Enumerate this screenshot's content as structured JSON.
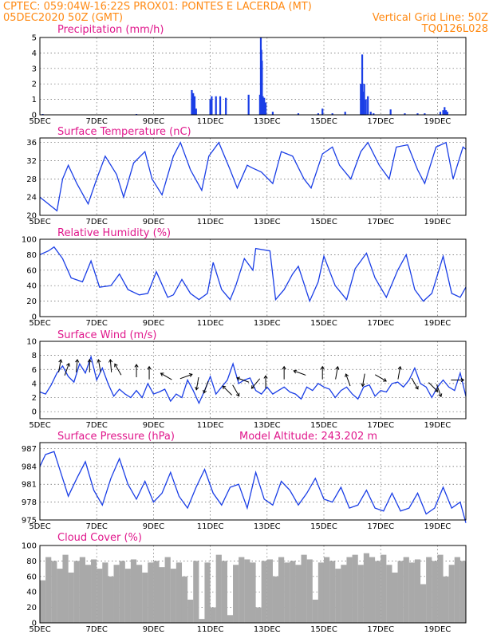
{
  "header": {
    "line1": "CPTEC:   059:04W-16:22S   PROX01: PONTES E LACERDA (MT)",
    "line2_left": "05DEC2020 50Z (GMT)",
    "line2_right": "Vertical Grid Line: 50Z",
    "line3_right": "TQ0126L028"
  },
  "colors": {
    "header": "#ff8a14",
    "titles": "#e0188c",
    "series": "#1a3ee6",
    "cloud": "#a9a9a9",
    "arrows": "#000000"
  },
  "chart_data": [
    {
      "type": "bar",
      "title": "Precipitation (mm/h)",
      "x_ticks": [
        "5DEC",
        "7DEC",
        "9DEC",
        "11DEC",
        "13DEC",
        "15DEC",
        "17DEC",
        "19DEC"
      ],
      "ylim": [
        0,
        5
      ],
      "y_ticks": [
        "0",
        "1",
        "2",
        "3",
        "4",
        "5"
      ],
      "grid": true,
      "x_days": [
        5.1,
        8.4,
        10.35,
        10.4,
        10.45,
        10.5,
        11.0,
        11.05,
        11.2,
        11.35,
        11.55,
        12.35,
        12.75,
        12.78,
        12.8,
        12.82,
        12.85,
        12.9,
        12.95,
        13.2,
        14.1,
        14.8,
        14.95,
        15.3,
        15.75,
        16.3,
        16.35,
        16.38,
        16.42,
        16.48,
        16.55,
        16.65,
        16.75,
        17.35,
        17.85,
        18.3,
        18.55,
        19.1,
        19.2,
        19.25,
        19.3,
        19.35
      ],
      "values": [
        0.05,
        0.05,
        1.6,
        1.4,
        1.2,
        0.4,
        1.0,
        1.2,
        1.2,
        1.2,
        1.1,
        1.3,
        1.3,
        5.0,
        4.2,
        3.5,
        1.2,
        1.1,
        0.8,
        0.2,
        0.1,
        0.1,
        0.4,
        0.1,
        0.2,
        2.0,
        3.9,
        1.5,
        2.0,
        1.0,
        1.2,
        0.2,
        0.1,
        0.35,
        0.1,
        0.1,
        0.1,
        0.2,
        0.3,
        0.5,
        0.3,
        0.2
      ]
    },
    {
      "type": "line",
      "title": "Surface Temperature (nC)",
      "x_ticks": [
        "5DEC",
        "7DEC",
        "9DEC",
        "11DEC",
        "13DEC",
        "15DEC",
        "17DEC",
        "19DEC"
      ],
      "ylim": [
        20,
        37
      ],
      "y_ticks": [
        "20",
        "24",
        "28",
        "32",
        "36"
      ],
      "grid": true,
      "x_days": [
        5.0,
        5.3,
        5.6,
        5.8,
        6.0,
        6.3,
        6.7,
        7.0,
        7.3,
        7.7,
        7.95,
        8.3,
        8.7,
        8.95,
        9.3,
        9.7,
        9.95,
        10.3,
        10.7,
        10.95,
        11.3,
        11.7,
        11.95,
        12.3,
        12.45,
        12.8,
        13.2,
        13.5,
        13.9,
        14.3,
        14.55,
        14.95,
        15.3,
        15.55,
        15.95,
        16.3,
        16.55,
        16.95,
        17.3,
        17.55,
        17.95,
        18.3,
        18.55,
        18.95,
        19.3,
        19.55,
        19.9,
        20.0
      ],
      "values": [
        24,
        22.5,
        21,
        28,
        31,
        27,
        22.5,
        28,
        33,
        29,
        24,
        31.5,
        34,
        28,
        24.5,
        33,
        36,
        30,
        25.5,
        33,
        36,
        30,
        26,
        31,
        30.5,
        29.5,
        27,
        34,
        33,
        28,
        26,
        33.5,
        35,
        31,
        28,
        34,
        36,
        31,
        28,
        35,
        35.5,
        30,
        27,
        35,
        36,
        28,
        35,
        34.5
      ]
    },
    {
      "type": "line",
      "title": "Relative Humidity (%)",
      "x_ticks": [
        "5DEC",
        "7DEC",
        "9DEC",
        "11DEC",
        "13DEC",
        "15DEC",
        "17DEC",
        "19DEC"
      ],
      "ylim": [
        0,
        100
      ],
      "y_ticks": [
        "0",
        "20",
        "40",
        "60",
        "80",
        "100"
      ],
      "grid": true,
      "x_days": [
        5.0,
        5.3,
        5.5,
        5.8,
        6.1,
        6.5,
        6.8,
        7.1,
        7.5,
        7.8,
        8.1,
        8.5,
        8.8,
        9.1,
        9.5,
        9.7,
        10.0,
        10.3,
        10.6,
        10.9,
        11.1,
        11.4,
        11.7,
        11.9,
        12.2,
        12.5,
        12.6,
        13.1,
        13.3,
        13.6,
        13.9,
        14.1,
        14.5,
        14.8,
        15.0,
        15.4,
        15.8,
        16.1,
        16.5,
        16.8,
        17.2,
        17.6,
        17.9,
        18.2,
        18.5,
        18.8,
        19.2,
        19.5,
        19.8,
        20.0
      ],
      "values": [
        80,
        85,
        90,
        75,
        50,
        45,
        72,
        38,
        40,
        55,
        35,
        28,
        30,
        58,
        25,
        28,
        48,
        30,
        22,
        30,
        70,
        35,
        22,
        40,
        75,
        60,
        88,
        85,
        22,
        35,
        55,
        65,
        20,
        45,
        78,
        40,
        22,
        62,
        82,
        50,
        25,
        60,
        80,
        35,
        20,
        30,
        78,
        30,
        25,
        38
      ]
    },
    {
      "type": "line",
      "title": "Surface Wind (m/s)",
      "x_ticks": [
        "5DEC",
        "7DEC",
        "9DEC",
        "11DEC",
        "13DEC",
        "15DEC",
        "17DEC",
        "19DEC"
      ],
      "ylim": [
        -1,
        10
      ],
      "y_ticks": [
        "0",
        "2",
        "4",
        "6",
        "8",
        "10"
      ],
      "grid": true,
      "x_days": [
        5.0,
        5.2,
        5.4,
        5.6,
        5.8,
        6.0,
        6.2,
        6.4,
        6.6,
        6.8,
        7.0,
        7.2,
        7.4,
        7.6,
        7.8,
        8.0,
        8.2,
        8.4,
        8.6,
        8.8,
        9.0,
        9.2,
        9.4,
        9.6,
        9.8,
        10.0,
        10.2,
        10.4,
        10.6,
        10.8,
        11.0,
        11.2,
        11.4,
        11.6,
        11.8,
        12.0,
        12.2,
        12.4,
        12.6,
        12.8,
        13.0,
        13.2,
        13.4,
        13.6,
        13.8,
        14.0,
        14.2,
        14.4,
        14.6,
        14.8,
        15.0,
        15.2,
        15.4,
        15.6,
        15.8,
        16.0,
        16.2,
        16.4,
        16.6,
        16.8,
        17.0,
        17.2,
        17.4,
        17.6,
        17.8,
        18.0,
        18.2,
        18.4,
        18.6,
        18.8,
        19.0,
        19.2,
        19.4,
        19.6,
        19.8,
        20.0
      ],
      "values": [
        2.8,
        2.5,
        3.8,
        5.5,
        6.5,
        5,
        4.2,
        6.8,
        5.5,
        7.8,
        4.5,
        6.2,
        4,
        2.2,
        3.2,
        2.5,
        2,
        3,
        2,
        4,
        2.5,
        2.8,
        3.2,
        1.5,
        2.5,
        2,
        4.5,
        3,
        1.2,
        3,
        5,
        2.5,
        3.5,
        4.5,
        6.8,
        4,
        4.5,
        4.8,
        3,
        2.5,
        3.5,
        2.5,
        3,
        3.5,
        2.8,
        2.5,
        1.8,
        3.5,
        3,
        4,
        3.5,
        3.2,
        2,
        3,
        3.5,
        2.5,
        1.8,
        3.5,
        3.8,
        2.2,
        3,
        2.8,
        4,
        4.2,
        3.5,
        4.5,
        6.2,
        4,
        3.5,
        2,
        3.5,
        4.5,
        3.5,
        3,
        5.5,
        2.2
      ],
      "wind_arrows": [
        {
          "day": 5.7,
          "speed": 6.5,
          "dir_deg": 80
        },
        {
          "day": 5.95,
          "speed": 6.0,
          "dir_deg": 70
        },
        {
          "day": 6.3,
          "speed": 6.5,
          "dir_deg": 85
        },
        {
          "day": 6.75,
          "speed": 6.5,
          "dir_deg": 90
        },
        {
          "day": 7.1,
          "speed": 6.5,
          "dir_deg": 100
        },
        {
          "day": 7.5,
          "speed": 6.5,
          "dir_deg": 95
        },
        {
          "day": 7.75,
          "speed": 6.0,
          "dir_deg": 120
        },
        {
          "day": 8.4,
          "speed": 5.8,
          "dir_deg": 90
        },
        {
          "day": 8.85,
          "speed": 5.5,
          "dir_deg": 90
        },
        {
          "day": 9.45,
          "speed": 5.0,
          "dir_deg": 150
        },
        {
          "day": 10.15,
          "speed": 5.0,
          "dir_deg": 20
        },
        {
          "day": 10.55,
          "speed": 4.0,
          "dir_deg": -100
        },
        {
          "day": 10.85,
          "speed": 3.5,
          "dir_deg": -110
        },
        {
          "day": 11.6,
          "speed": 3.0,
          "dir_deg": 135
        },
        {
          "day": 11.9,
          "speed": 3.0,
          "dir_deg": -60
        },
        {
          "day": 12.15,
          "speed": 4.5,
          "dir_deg": 160
        },
        {
          "day": 12.6,
          "speed": 4.0,
          "dir_deg": -130
        },
        {
          "day": 12.95,
          "speed": 4.2,
          "dir_deg": 90
        },
        {
          "day": 13.6,
          "speed": 5.5,
          "dir_deg": 90
        },
        {
          "day": 14.15,
          "speed": 5.5,
          "dir_deg": 160
        },
        {
          "day": 14.95,
          "speed": 5.5,
          "dir_deg": 90
        },
        {
          "day": 15.45,
          "speed": 5.5,
          "dir_deg": 80
        },
        {
          "day": 15.85,
          "speed": 4.5,
          "dir_deg": 110
        },
        {
          "day": 16.4,
          "speed": 4.5,
          "dir_deg": -100
        },
        {
          "day": 17.0,
          "speed": 4.8,
          "dir_deg": -30
        },
        {
          "day": 17.65,
          "speed": 5.5,
          "dir_deg": 80
        },
        {
          "day": 18.2,
          "speed": 4.0,
          "dir_deg": -60
        },
        {
          "day": 18.85,
          "speed": 3.5,
          "dir_deg": -45
        },
        {
          "day": 19.05,
          "speed": 3.0,
          "dir_deg": -70
        },
        {
          "day": 19.7,
          "speed": 4.5,
          "dir_deg": 0
        }
      ]
    },
    {
      "type": "line",
      "title": "Surface Pressure (hPa)",
      "annotation": "Model Altitude: 243.202 m",
      "x_ticks": [
        "5DEC",
        "7DEC",
        "9DEC",
        "11DEC",
        "13DEC",
        "15DEC",
        "17DEC",
        "19DEC"
      ],
      "ylim": [
        975,
        988
      ],
      "y_ticks": [
        "975",
        "978",
        "981",
        "984",
        "987"
      ],
      "grid": true,
      "x_days": [
        5.0,
        5.2,
        5.5,
        5.8,
        6.0,
        6.3,
        6.6,
        6.9,
        7.2,
        7.5,
        7.8,
        8.1,
        8.4,
        8.7,
        9.0,
        9.3,
        9.6,
        9.9,
        10.2,
        10.5,
        10.8,
        11.1,
        11.4,
        11.7,
        12.0,
        12.3,
        12.6,
        12.9,
        13.2,
        13.5,
        13.8,
        14.1,
        14.4,
        14.7,
        15.0,
        15.3,
        15.6,
        15.9,
        16.2,
        16.5,
        16.8,
        17.1,
        17.4,
        17.7,
        18.0,
        18.3,
        18.6,
        18.9,
        19.2,
        19.5,
        19.8,
        20.0
      ],
      "values": [
        984,
        986,
        986.5,
        982,
        979,
        982,
        984.8,
        980,
        977.5,
        982,
        985.3,
        981,
        978.5,
        981.5,
        978,
        979.5,
        983,
        979,
        977,
        980.5,
        983.5,
        979.5,
        977.5,
        980.5,
        981,
        977,
        983,
        978.5,
        977.5,
        981.5,
        980,
        977.5,
        979.5,
        982,
        978.5,
        978,
        980.5,
        977,
        977.5,
        980,
        977,
        976.5,
        979.5,
        976.5,
        977,
        979.5,
        976,
        977,
        980.5,
        977,
        978,
        974.5
      ]
    },
    {
      "type": "bar",
      "title": "Cloud Cover (%)",
      "x_ticks": [
        "5DEC",
        "7DEC",
        "9DEC",
        "11DEC",
        "13DEC",
        "15DEC",
        "17DEC",
        "19DEC"
      ],
      "ylim": [
        0,
        100
      ],
      "y_ticks": [
        "0",
        "20",
        "40",
        "60",
        "80",
        "100"
      ],
      "grid": true,
      "x_days": [
        5.1,
        5.3,
        5.5,
        5.7,
        5.9,
        6.1,
        6.3,
        6.5,
        6.7,
        6.9,
        7.1,
        7.3,
        7.5,
        7.7,
        7.9,
        8.1,
        8.3,
        8.5,
        8.7,
        8.9,
        9.1,
        9.3,
        9.5,
        9.7,
        9.9,
        10.1,
        10.3,
        10.5,
        10.7,
        10.9,
        11.1,
        11.3,
        11.5,
        11.7,
        11.9,
        12.1,
        12.3,
        12.5,
        12.7,
        12.9,
        13.1,
        13.3,
        13.5,
        13.7,
        13.9,
        14.1,
        14.3,
        14.5,
        14.7,
        14.9,
        15.1,
        15.3,
        15.5,
        15.7,
        15.9,
        16.1,
        16.3,
        16.5,
        16.7,
        16.9,
        17.1,
        17.3,
        17.5,
        17.7,
        17.9,
        18.1,
        18.3,
        18.5,
        18.7,
        18.9,
        19.1,
        19.3,
        19.5,
        19.7,
        19.9
      ],
      "values": [
        55,
        85,
        80,
        70,
        88,
        65,
        80,
        85,
        75,
        82,
        70,
        78,
        60,
        75,
        80,
        70,
        82,
        75,
        65,
        78,
        80,
        72,
        85,
        70,
        78,
        60,
        30,
        80,
        5,
        78,
        20,
        88,
        80,
        10,
        75,
        85,
        82,
        78,
        20,
        80,
        82,
        60,
        85,
        78,
        80,
        75,
        88,
        82,
        30,
        78,
        85,
        80,
        70,
        75,
        85,
        88,
        75,
        90,
        85,
        80,
        88,
        75,
        65,
        80,
        85,
        78,
        82,
        50,
        85,
        80,
        88,
        60,
        75,
        85,
        80
      ]
    }
  ]
}
